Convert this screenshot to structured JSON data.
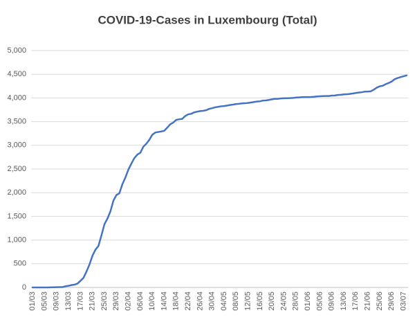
{
  "chart_data": {
    "type": "line",
    "title": "COVID-19-Cases in Luxembourg (Total)",
    "categories": [
      "01/03",
      null,
      null,
      null,
      "05/03",
      null,
      null,
      null,
      "09/03",
      null,
      null,
      null,
      "13/03",
      null,
      null,
      null,
      "17/03",
      null,
      null,
      null,
      "21/03",
      null,
      null,
      null,
      "25/03",
      null,
      null,
      null,
      "29/03",
      null,
      null,
      null,
      "02/04",
      null,
      null,
      null,
      "06/04",
      null,
      null,
      null,
      "10/04",
      null,
      null,
      null,
      "14/04",
      null,
      null,
      null,
      "18/04",
      null,
      null,
      null,
      "22/04",
      null,
      null,
      null,
      "26/04",
      null,
      null,
      null,
      "30/04",
      null,
      null,
      null,
      "04/05",
      null,
      null,
      null,
      "08/05",
      null,
      null,
      null,
      "12/05",
      null,
      null,
      null,
      "16/05",
      null,
      null,
      null,
      "20/05",
      null,
      null,
      null,
      "24/05",
      null,
      null,
      null,
      "28/05",
      null,
      null,
      null,
      "01/06",
      null,
      null,
      null,
      "05/06",
      null,
      null,
      null,
      "09/06",
      null,
      null,
      null,
      "13/06",
      null,
      null,
      null,
      "17/06",
      null,
      null,
      null,
      "21/06",
      null,
      null,
      null,
      "25/06",
      null,
      null,
      null,
      "29/06",
      null,
      null,
      null,
      "03/07",
      null
    ],
    "values": [
      0,
      0,
      0,
      0,
      0,
      0,
      1,
      3,
      5,
      7,
      7,
      26,
      34,
      51,
      59,
      81,
      140,
      203,
      335,
      484,
      670,
      798,
      875,
      1099,
      1333,
      1453,
      1605,
      1831,
      1950,
      1988,
      2178,
      2319,
      2487,
      2612,
      2729,
      2804,
      2843,
      2970,
      3034,
      3115,
      3223,
      3270,
      3281,
      3292,
      3307,
      3373,
      3444,
      3480,
      3537,
      3550,
      3558,
      3618,
      3654,
      3665,
      3695,
      3711,
      3723,
      3729,
      3741,
      3769,
      3784,
      3802,
      3812,
      3824,
      3828,
      3840,
      3851,
      3859,
      3871,
      3877,
      3886,
      3888,
      3894,
      3904,
      3915,
      3923,
      3930,
      3945,
      3947,
      3958,
      3971,
      3980,
      3981,
      3990,
      3993,
      3995,
      3996,
      4001,
      4008,
      4012,
      4016,
      4018,
      4019,
      4020,
      4024,
      4032,
      4035,
      4039,
      4040,
      4040,
      4049,
      4052,
      4063,
      4066,
      4075,
      4078,
      4085,
      4093,
      4104,
      4113,
      4120,
      4133,
      4135,
      4140,
      4173,
      4216,
      4246,
      4256,
      4291,
      4315,
      4345,
      4395,
      4420,
      4440,
      4458,
      4475
    ],
    "color": "#4472c4",
    "ylim": [
      0,
      5000
    ],
    "yticks": [
      0,
      500,
      {
        "value": 1000,
        "label": "1,000"
      },
      {
        "value": 1500,
        "label": "1,500"
      },
      {
        "value": 2000,
        "label": "2,000"
      },
      {
        "value": 2500,
        "label": "2,500"
      },
      {
        "value": 3000,
        "label": "3,000"
      },
      {
        "value": 3500,
        "label": "3,500"
      },
      {
        "value": 4000,
        "label": "4,000"
      },
      {
        "value": 4500,
        "label": "4,500"
      },
      {
        "value": 5000,
        "label": "5,000"
      }
    ],
    "grid": true
  }
}
